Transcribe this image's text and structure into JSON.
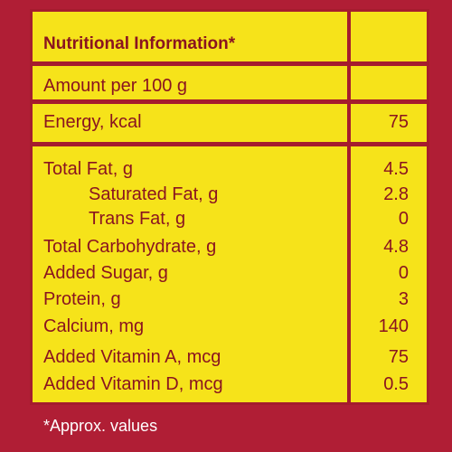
{
  "header": {
    "title": "Nutritional Information*"
  },
  "basis": {
    "label": "Amount per 100 g"
  },
  "energy": {
    "label": "Energy, kcal",
    "value": "75"
  },
  "nutrients": [
    {
      "label": "Total Fat, g",
      "value": "4.5"
    },
    {
      "label": "Saturated Fat, g",
      "value": "2.8"
    },
    {
      "label": "Trans Fat, g",
      "value": "0"
    },
    {
      "label": "Total Carbohydrate, g",
      "value": "4.8"
    },
    {
      "label": "Added Sugar, g",
      "value": "0"
    },
    {
      "label": "Protein, g",
      "value": "3"
    },
    {
      "label": "Calcium, mg",
      "value": "140"
    },
    {
      "label": "Added Vitamin A, mcg",
      "value": "75"
    },
    {
      "label": "Added Vitamin D, mcg",
      "value": "0.5"
    }
  ],
  "footnote": "*Approx. values",
  "colors": {
    "background": "#b01e35",
    "panel": "#f6e31a",
    "text": "#8a1420"
  }
}
